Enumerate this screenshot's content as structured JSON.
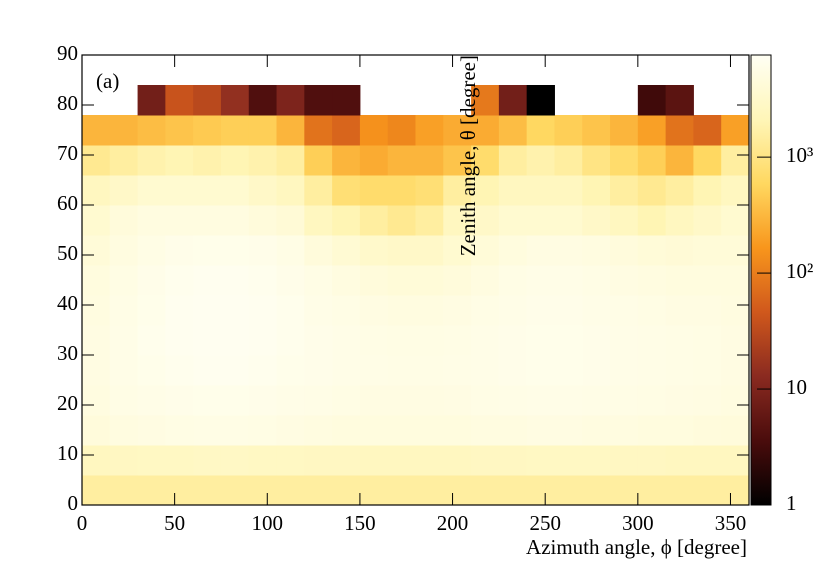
{
  "chart_data": {
    "type": "heatmap",
    "annotation": "(a)",
    "x_label": "Azimuth angle, ϕ [degree]",
    "y_label": "Zenith angle, θ [degree]",
    "xlim": [
      0,
      360
    ],
    "ylim": [
      0,
      90
    ],
    "xticks": [
      0,
      50,
      100,
      150,
      200,
      250,
      300,
      350
    ],
    "yticks": [
      0,
      10,
      20,
      30,
      40,
      50,
      60,
      70,
      80,
      90
    ],
    "xbins": [
      0,
      15,
      30,
      45,
      60,
      75,
      90,
      105,
      120,
      135,
      150,
      165,
      180,
      195,
      210,
      225,
      240,
      255,
      270,
      285,
      300,
      315,
      330,
      345,
      360
    ],
    "ybins": [
      0,
      6,
      12,
      18,
      24,
      30,
      36,
      42,
      48,
      54,
      60,
      66,
      72,
      78,
      84,
      90
    ],
    "zlim": [
      1,
      7600
    ],
    "zlog": true,
    "zticks": [
      1,
      10,
      {
        "value": 100,
        "label": "10²"
      },
      {
        "value": 1000,
        "label": "10³"
      }
    ],
    "colormap": [
      "#000000",
      "#4a0c0c",
      "#8a2a20",
      "#d0581c",
      "#f8961c",
      "#ffd860",
      "#fff6b8",
      "#fffff4"
    ],
    "values": [
      [
        1500,
        1500,
        1500,
        1500,
        1500,
        1500,
        1500,
        1500,
        1500,
        1500,
        1500,
        1500,
        1500,
        1500,
        1500,
        1500,
        1500,
        1500,
        1500,
        1500,
        1500,
        1500,
        1500,
        1500
      ],
      [
        2500,
        2600,
        2700,
        2700,
        2800,
        2800,
        2700,
        2700,
        2600,
        2600,
        2500,
        2500,
        2500,
        2500,
        2600,
        2600,
        2700,
        2700,
        2700,
        2600,
        2600,
        2500,
        2500,
        2500
      ],
      [
        4500,
        5000,
        5200,
        5400,
        5500,
        5500,
        5400,
        5200,
        5000,
        4800,
        4800,
        4800,
        4800,
        4800,
        5000,
        5000,
        5200,
        5200,
        5000,
        5000,
        4800,
        4800,
        4600,
        4500
      ],
      [
        5000,
        5500,
        5800,
        6000,
        6200,
        6200,
        6000,
        5800,
        5600,
        5400,
        5200,
        5200,
        5200,
        5300,
        5500,
        5600,
        5800,
        5800,
        5600,
        5500,
        5400,
        5300,
        5200,
        5000
      ],
      [
        5200,
        5800,
        6200,
        6500,
        6800,
        6800,
        6600,
        6200,
        6000,
        5800,
        5600,
        5500,
        5500,
        5600,
        5800,
        6000,
        6200,
        6200,
        6000,
        5800,
        5600,
        5500,
        5400,
        5200
      ],
      [
        5200,
        5800,
        6400,
        6800,
        7000,
        7000,
        6800,
        6400,
        6000,
        5800,
        5500,
        5400,
        5400,
        5500,
        5800,
        6000,
        6200,
        6200,
        6000,
        5800,
        5600,
        5500,
        5400,
        5200
      ],
      [
        5000,
        5600,
        6200,
        6800,
        7000,
        7000,
        6800,
        6400,
        5800,
        5500,
        5200,
        5000,
        5000,
        5200,
        5500,
        5800,
        6000,
        6000,
        5800,
        5600,
        5400,
        5200,
        5200,
        5000
      ],
      [
        4800,
        5400,
        6000,
        6500,
        6800,
        6800,
        6500,
        6000,
        5500,
        5000,
        4500,
        4200,
        4200,
        4500,
        5000,
        5500,
        5800,
        5800,
        5500,
        5200,
        5000,
        4800,
        4800,
        4800
      ],
      [
        4200,
        5000,
        5500,
        6000,
        6200,
        6200,
        6000,
        5500,
        4500,
        3800,
        3200,
        3000,
        3000,
        3500,
        4200,
        4800,
        5200,
        5200,
        5000,
        4600,
        4200,
        4000,
        4200,
        4200
      ],
      [
        3500,
        4500,
        5000,
        5000,
        5000,
        5000,
        4500,
        4000,
        2500,
        2000,
        1500,
        1200,
        1500,
        2500,
        3000,
        3500,
        3500,
        3500,
        3000,
        2500,
        2000,
        2500,
        3000,
        3500
      ],
      [
        2500,
        3000,
        3500,
        3500,
        3500,
        3500,
        3000,
        2500,
        1500,
        800,
        700,
        700,
        800,
        1500,
        2000,
        2500,
        2500,
        2500,
        2000,
        1500,
        1200,
        1500,
        2000,
        2500
      ],
      [
        1200,
        1500,
        1800,
        2000,
        1800,
        2000,
        1800,
        1500,
        500,
        300,
        250,
        300,
        300,
        400,
        700,
        1500,
        1800,
        1500,
        1000,
        700,
        500,
        300,
        600,
        1500
      ],
      [
        300,
        300,
        350,
        400,
        450,
        500,
        500,
        300,
        80,
        60,
        150,
        120,
        200,
        250,
        250,
        350,
        600,
        500,
        400,
        300,
        200,
        80,
        60,
        200
      ],
      [
        null,
        null,
        8,
        40,
        30,
        15,
        4,
        10,
        4,
        4,
        null,
        null,
        null,
        null,
        90,
        8,
        1,
        null,
        null,
        null,
        3,
        5,
        null,
        null
      ],
      [
        null,
        null,
        null,
        null,
        null,
        null,
        null,
        null,
        null,
        null,
        null,
        null,
        null,
        null,
        null,
        null,
        null,
        null,
        null,
        null,
        null,
        null,
        null,
        null
      ]
    ]
  }
}
